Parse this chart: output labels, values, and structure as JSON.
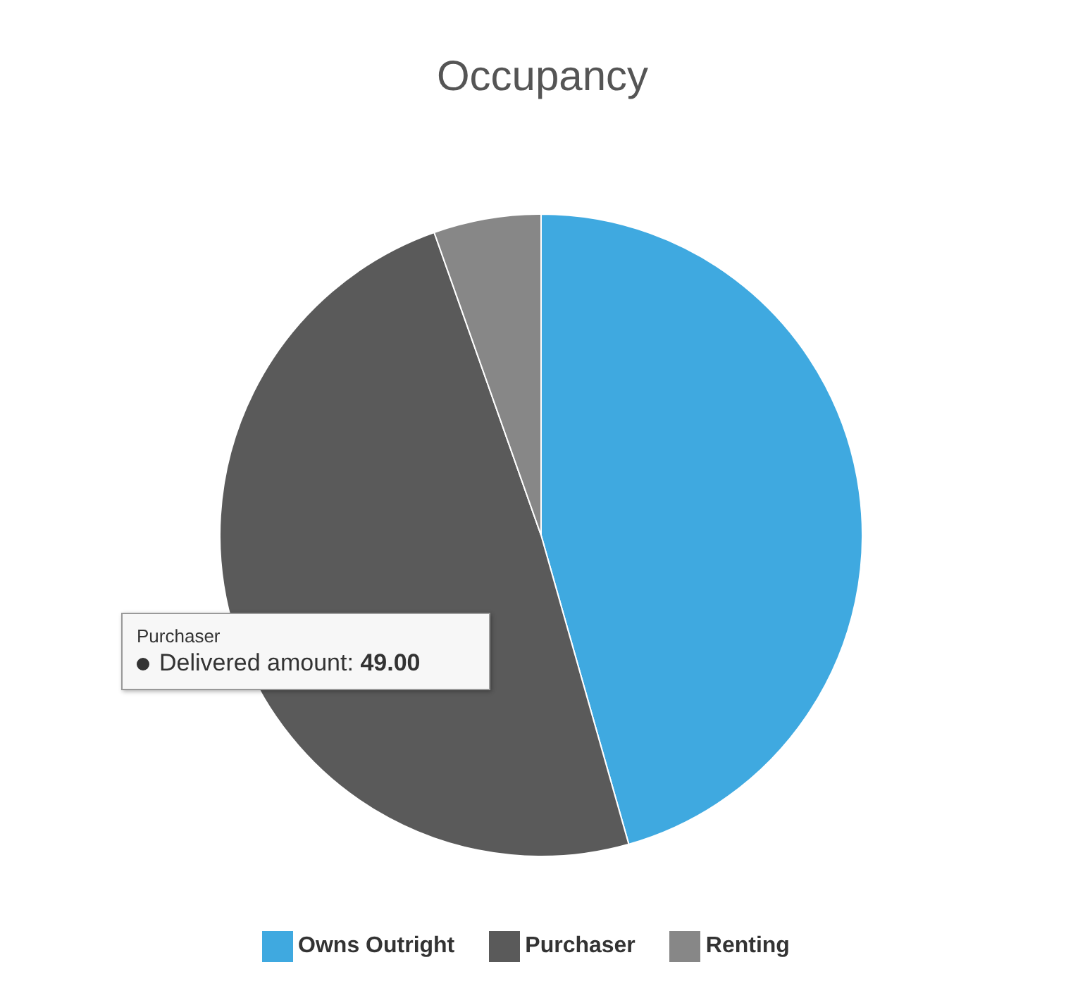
{
  "chart_data": {
    "type": "pie",
    "title": "Occupancy",
    "categories": [
      "Owns Outright",
      "Purchaser",
      "Renting"
    ],
    "values": [
      45.6,
      49,
      5.4
    ],
    "colors": [
      "#3fa9e0",
      "#5a5a5a",
      "#878787"
    ],
    "legend": "bottom",
    "annotations": [
      "Purchaser",
      "Delivered amount: 49.00"
    ]
  }
}
